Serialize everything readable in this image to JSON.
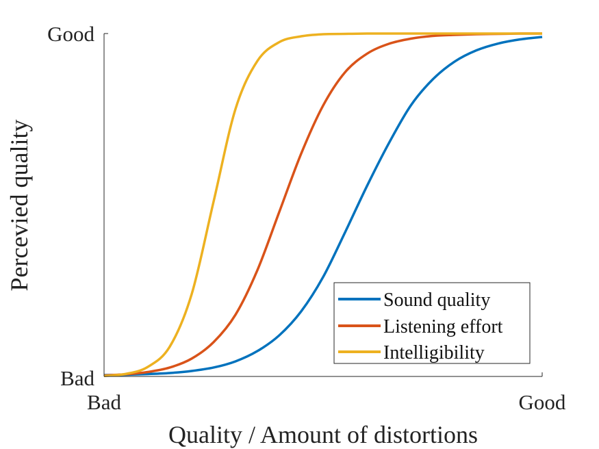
{
  "chart_data": {
    "type": "line",
    "title": "",
    "xlabel": "Quality / Amount of distortions",
    "ylabel": "Percevied quality",
    "xlim": [
      0,
      1
    ],
    "ylim": [
      0,
      1
    ],
    "grid": false,
    "legend_position": "bottom-right",
    "xticks": [
      {
        "value": 0,
        "label": "Bad"
      },
      {
        "value": 1,
        "label": "Good"
      }
    ],
    "yticks": [
      {
        "value": 0,
        "label": "Bad"
      },
      {
        "value": 1,
        "label": "Good"
      }
    ],
    "x": [
      0,
      0.05,
      0.1,
      0.15,
      0.2,
      0.25,
      0.3,
      0.35,
      0.4,
      0.45,
      0.5,
      0.55,
      0.6,
      0.65,
      0.7,
      0.75,
      0.8,
      0.85,
      0.9,
      0.95,
      1
    ],
    "series": [
      {
        "name": "Sound quality",
        "color": "#0072BD",
        "values": [
          0.004,
          0.005,
          0.007,
          0.01,
          0.016,
          0.026,
          0.044,
          0.074,
          0.12,
          0.19,
          0.29,
          0.42,
          0.555,
          0.68,
          0.79,
          0.866,
          0.918,
          0.951,
          0.971,
          0.983,
          0.99
        ]
      },
      {
        "name": "Listening effort",
        "color": "#D95319",
        "values": [
          0.003,
          0.0064,
          0.013,
          0.026,
          0.052,
          0.1,
          0.18,
          0.31,
          0.48,
          0.65,
          0.79,
          0.887,
          0.941,
          0.97,
          0.985,
          0.993,
          0.996,
          0.998,
          0.999,
          1.0,
          1.0
        ]
      },
      {
        "name": "Intelligibility",
        "color": "#EDB120",
        "values": [
          0.0015,
          0.0075,
          0.028,
          0.087,
          0.24,
          0.51,
          0.78,
          0.92,
          0.975,
          0.992,
          0.998,
          0.999,
          1.0,
          1.0,
          1.0,
          1.0,
          1.0,
          1.0,
          1.0,
          1.0,
          1.0
        ]
      }
    ]
  }
}
